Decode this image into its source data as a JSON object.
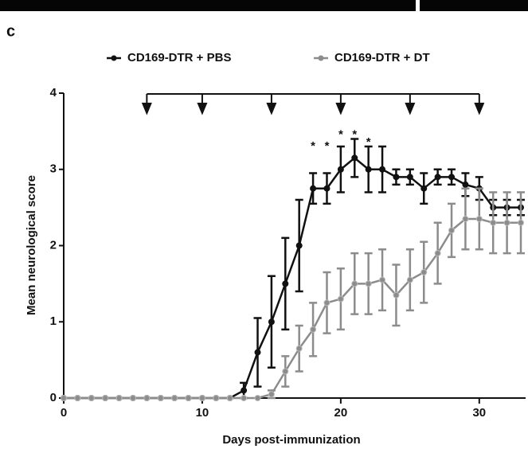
{
  "chart_data": {
    "type": "line",
    "panel_label": "c",
    "xlabel": "Days post-immunization",
    "ylabel": "Mean neurological score",
    "xlim": [
      0,
      33
    ],
    "ylim": [
      0,
      4
    ],
    "xticks": [
      0,
      10,
      20,
      30
    ],
    "yticks": [
      0,
      1,
      2,
      3,
      4
    ],
    "injection_days": [
      6,
      10,
      15,
      20,
      25,
      30
    ],
    "annotations": [
      {
        "text": "*",
        "x": 18,
        "y": 3.3
      },
      {
        "text": "*",
        "x": 19,
        "y": 3.3
      },
      {
        "text": "*",
        "x": 20,
        "y": 3.45
      },
      {
        "text": "*",
        "x": 21,
        "y": 3.45
      },
      {
        "text": "*",
        "x": 22,
        "y": 3.35
      }
    ],
    "x": [
      0,
      1,
      2,
      3,
      4,
      5,
      6,
      7,
      8,
      9,
      10,
      11,
      12,
      13,
      14,
      15,
      16,
      17,
      18,
      19,
      20,
      21,
      22,
      23,
      24,
      25,
      26,
      27,
      28,
      29,
      30,
      31,
      32,
      33
    ],
    "series": [
      {
        "name": "CD169-DTR + PBS",
        "color": "#111111",
        "values": [
          0,
          0,
          0,
          0,
          0,
          0,
          0,
          0,
          0,
          0,
          0,
          0,
          0,
          0.1,
          0.6,
          1.0,
          1.5,
          2.0,
          2.75,
          2.75,
          3.0,
          3.15,
          3.0,
          3.0,
          2.9,
          2.9,
          2.75,
          2.9,
          2.9,
          2.8,
          2.75,
          2.5,
          2.5,
          2.5
        ],
        "errors": [
          0,
          0,
          0,
          0,
          0,
          0,
          0,
          0,
          0,
          0,
          0,
          0,
          0,
          0.1,
          0.45,
          0.6,
          0.6,
          0.6,
          0.2,
          0.2,
          0.3,
          0.25,
          0.3,
          0.3,
          0.1,
          0.1,
          0.2,
          0.1,
          0.1,
          0.15,
          0.15,
          0.1,
          0.1,
          0.1
        ]
      },
      {
        "name": "CD169-DTR + DT",
        "color": "#8c8c8c",
        "values": [
          0,
          0,
          0,
          0,
          0,
          0,
          0,
          0,
          0,
          0,
          0,
          0,
          0,
          0,
          0,
          0.05,
          0.35,
          0.65,
          0.9,
          1.25,
          1.3,
          1.5,
          1.5,
          1.55,
          1.35,
          1.55,
          1.65,
          1.9,
          2.2,
          2.35,
          2.35,
          2.3,
          2.3,
          2.3
        ],
        "errors": [
          0,
          0,
          0,
          0,
          0,
          0,
          0,
          0,
          0,
          0,
          0,
          0,
          0,
          0,
          0,
          0.05,
          0.2,
          0.3,
          0.35,
          0.4,
          0.4,
          0.4,
          0.4,
          0.4,
          0.4,
          0.4,
          0.4,
          0.4,
          0.35,
          0.4,
          0.4,
          0.4,
          0.4,
          0.4
        ]
      }
    ]
  }
}
